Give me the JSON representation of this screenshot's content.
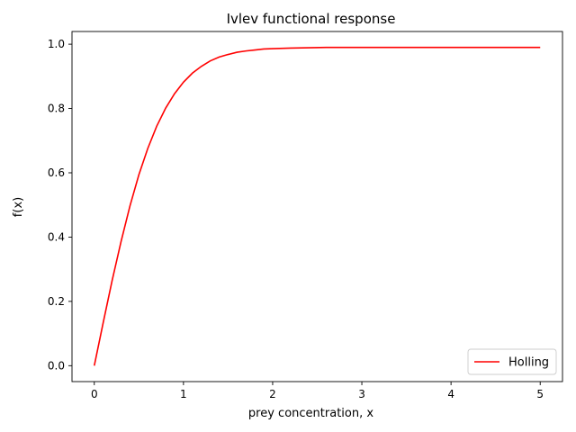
{
  "chart_data": {
    "type": "line",
    "title": "Ivlev functional response",
    "xlabel": "prey concentration, x",
    "ylabel": "f(x)",
    "xlim": [
      -0.25,
      5.25
    ],
    "ylim": [
      -0.0495,
      1.0395
    ],
    "xticks": [
      0,
      1,
      2,
      3,
      4,
      5
    ],
    "xtick_labels": [
      "0",
      "1",
      "2",
      "3",
      "4",
      "5"
    ],
    "yticks": [
      0.0,
      0.2,
      0.4,
      0.6,
      0.8,
      1.0
    ],
    "ytick_labels": [
      "0.0",
      "0.2",
      "0.4",
      "0.6",
      "0.8",
      "1.0"
    ],
    "grid": false,
    "legend_position": "lower-right",
    "series": [
      {
        "name": "Holling",
        "color": "#ff0000",
        "x": [
          0.0,
          0.1,
          0.2,
          0.3,
          0.4,
          0.5,
          0.6,
          0.7,
          0.8,
          0.9,
          1.0,
          1.1,
          1.2,
          1.3,
          1.4,
          1.5,
          1.6,
          1.7,
          1.8,
          1.9,
          2.0,
          2.2,
          2.4,
          2.6,
          2.8,
          3.0,
          3.5,
          4.0,
          4.5,
          5.0
        ],
        "y": [
          0.0,
          0.134,
          0.265,
          0.386,
          0.497,
          0.594,
          0.676,
          0.745,
          0.801,
          0.846,
          0.882,
          0.91,
          0.931,
          0.948,
          0.96,
          0.968,
          0.975,
          0.979,
          0.982,
          0.985,
          0.986,
          0.988,
          0.989,
          0.99,
          0.99,
          0.99,
          0.99,
          0.99,
          0.99,
          0.99
        ]
      }
    ]
  }
}
